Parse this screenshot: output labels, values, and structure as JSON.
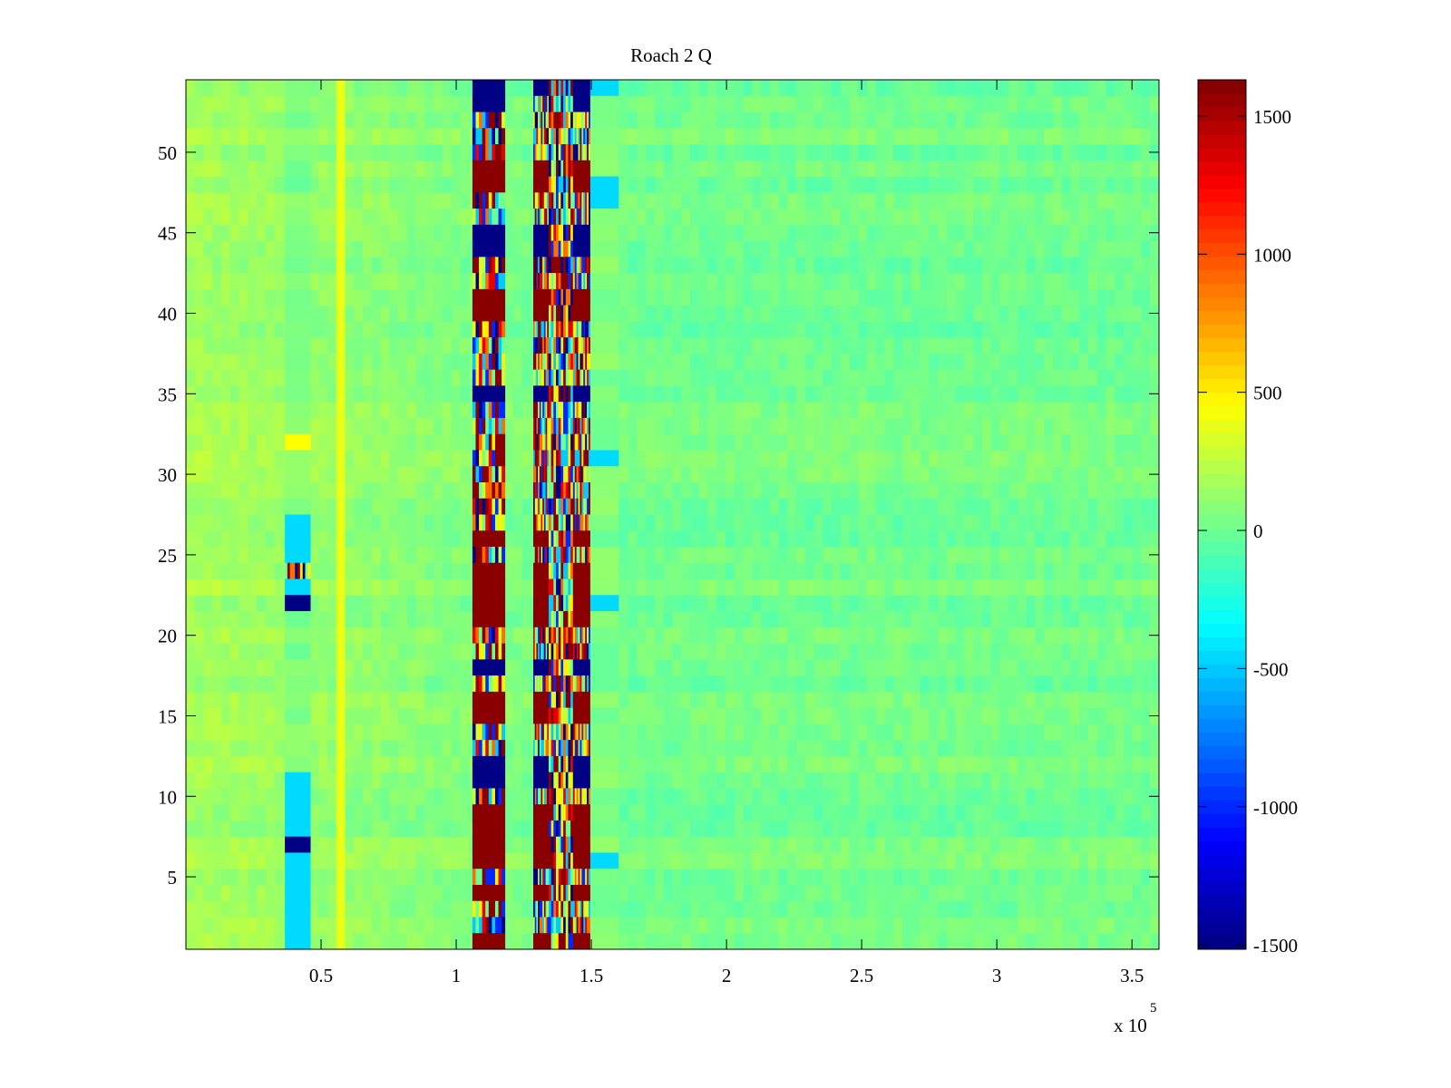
{
  "chart_data": {
    "type": "heatmap",
    "title": "Roach 2 Q",
    "xlabel": "",
    "ylabel": "",
    "x_exponent_label": "x 10",
    "x_exponent_power": "5",
    "xlim": [
      0,
      360000
    ],
    "ylim": [
      0.5,
      54.5
    ],
    "rows": 54,
    "colormap": "jet",
    "clim": [
      -1516,
      1631
    ],
    "xticks": [
      {
        "value": 50000,
        "label": "0.5"
      },
      {
        "value": 100000,
        "label": "1"
      },
      {
        "value": 150000,
        "label": "1.5"
      },
      {
        "value": 200000,
        "label": "2"
      },
      {
        "value": 250000,
        "label": "2.5"
      },
      {
        "value": 300000,
        "label": "3"
      },
      {
        "value": 350000,
        "label": "3.5"
      }
    ],
    "yticks": [
      {
        "value": 5,
        "label": "5"
      },
      {
        "value": 10,
        "label": "10"
      },
      {
        "value": 15,
        "label": "15"
      },
      {
        "value": 20,
        "label": "20"
      },
      {
        "value": 25,
        "label": "25"
      },
      {
        "value": 30,
        "label": "30"
      },
      {
        "value": 35,
        "label": "35"
      },
      {
        "value": 40,
        "label": "40"
      },
      {
        "value": 45,
        "label": "45"
      },
      {
        "value": 50,
        "label": "50"
      }
    ],
    "colorbar_ticks": [
      {
        "value": 1500,
        "label": "1500"
      },
      {
        "value": 1000,
        "label": "1000"
      },
      {
        "value": 500,
        "label": "500"
      },
      {
        "value": 0,
        "label": "0"
      },
      {
        "value": -500,
        "label": "-500"
      },
      {
        "value": -1000,
        "label": "-1000"
      },
      {
        "value": -1500,
        "label": "-1500"
      }
    ],
    "background": {
      "mean_left": 180,
      "mean_right": 20,
      "noise": 120
    },
    "pattern_key": {
      "B": -1500,
      "R": 1600,
      "C": -450,
      "Y": 450,
      "M": "mixed",
      "G": 50
    },
    "bands": [
      {
        "x": [
          106000,
          118000
        ],
        "rows_top_to_bottom": "BBMMMRRMMBBMMRRMMMMBMMMMMMMMRMRRRRMMBMRRMMBBMRRRRMRMMR"
      },
      {
        "x": [
          128500,
          134200
        ],
        "rows_top_to_bottom": "BMMMMRRMMBBMMRRMMMMBMMMMMMMMRMRRRRMMBMRRMMBBMRRRRMRMMR"
      },
      {
        "x": [
          134200,
          143200
        ],
        "rows_top_to_bottom": "MMMMMMMMMMMMMMMMMMMMMMMMMMMMMMMMMMMMMMMMMMMMMMMMMMMMMM"
      },
      {
        "x": [
          143200,
          149600
        ],
        "rows_top_to_bottom": "BBMMMRRMMBBMMRRMMMMBMMMMMMMMRMRRRRMMBMRRMMBBMRRRRMRMMR"
      },
      {
        "x": [
          36600,
          46000
        ],
        "rows_top_to_bottom": "GGGGGGGGGGGGGGGGGGGGGGYGGGGCCCMCBGGGGGGGGGGCCCCBCCCCCC"
      },
      {
        "x": [
          149600,
          160000
        ],
        "rows_top_to_bottom": "CGGGGGCCGGGGGGGGGGGGGGGCGGGGGGGGCGGGGGGGGGGGGGGGCGGGGG"
      }
    ]
  }
}
